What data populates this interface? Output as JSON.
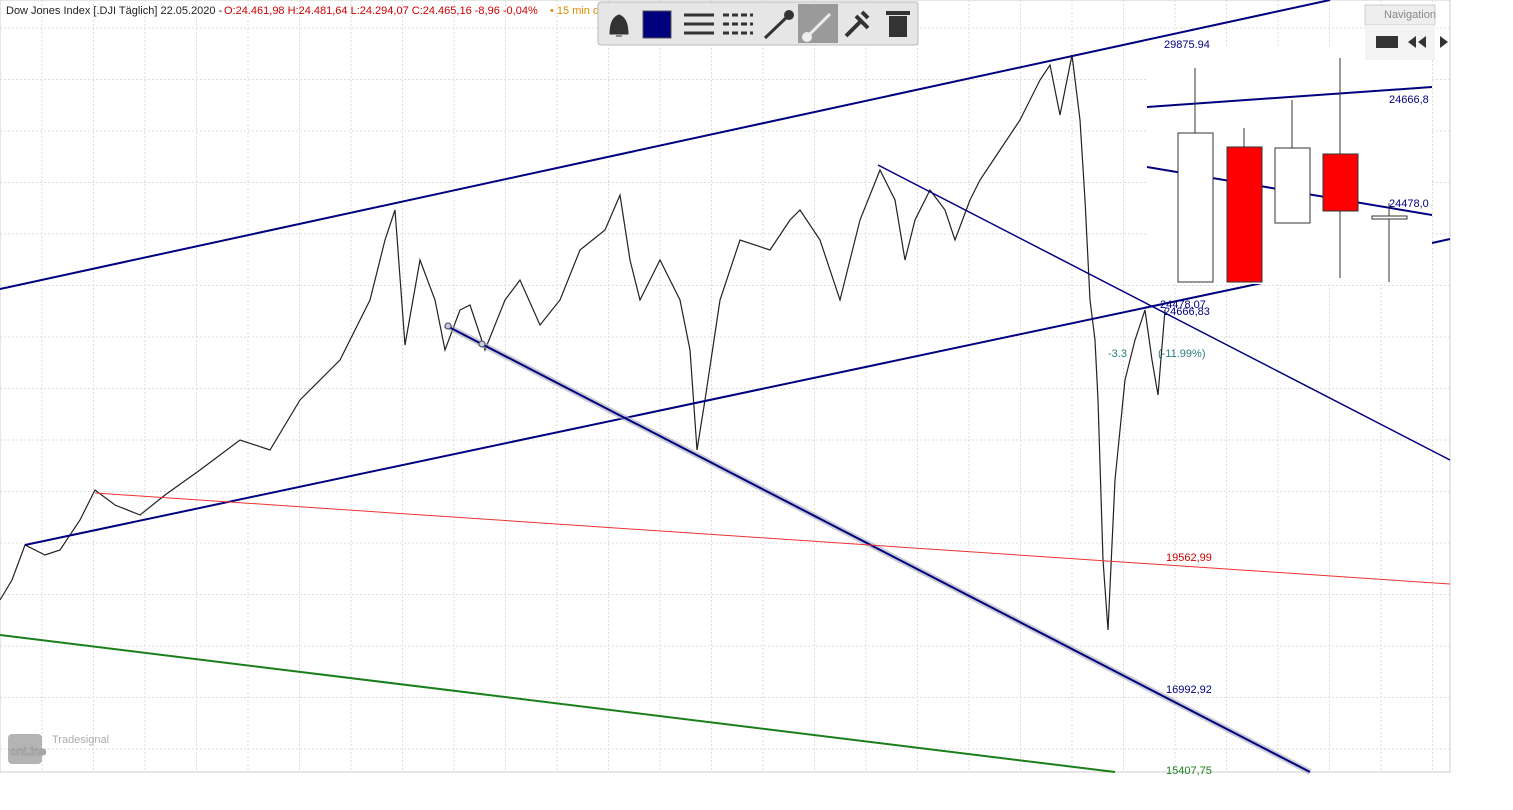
{
  "header": {
    "instrument": "Dow Jones Index [.DJI Täglich] 22.05.2020 -",
    "ohlc": "O:24.461,98 H:24.481,64 L:24.294,07 C:24.465,16 -8,96 -0,04%",
    "interval": "• 15 min d"
  },
  "navigation": {
    "title": "Navigation",
    "labels": [
      "29875.94",
      "24666,8",
      "24478,0"
    ]
  },
  "line_labels": [
    "24478,07",
    "24666,83",
    "-3.3",
    "(-11.99%)",
    "19562,99",
    "16992,92",
    "15407,75"
  ],
  "logo": {
    "brand": "Tradesignal",
    "name": "onLine"
  }
}
